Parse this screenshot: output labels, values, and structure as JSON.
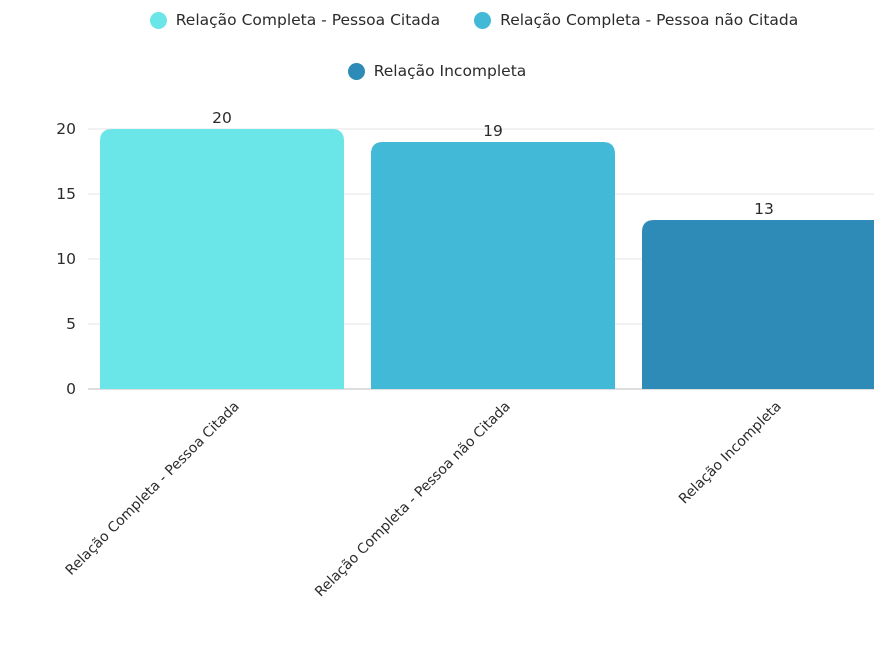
{
  "legend": {
    "items": [
      {
        "label": "Relação Completa - Pessoa Citada",
        "color": "#6be6e8"
      },
      {
        "label": "Relação Completa - Pessoa não Citada",
        "color": "#43b9d8"
      },
      {
        "label": "Relação Incompleta",
        "color": "#2e8bb8"
      }
    ]
  },
  "chart_data": {
    "type": "bar",
    "categories": [
      "Relação Completa - Pessoa Citada",
      "Relação Completa - Pessoa não Citada",
      "Relação Incompleta"
    ],
    "values": [
      20,
      19,
      13
    ],
    "colors": [
      "#6be6e8",
      "#43b9d8",
      "#2e8bb8"
    ],
    "yticks": [
      0,
      5,
      10,
      15,
      20
    ],
    "ylim": [
      0,
      20
    ],
    "grid": true,
    "legend_position": "top"
  }
}
